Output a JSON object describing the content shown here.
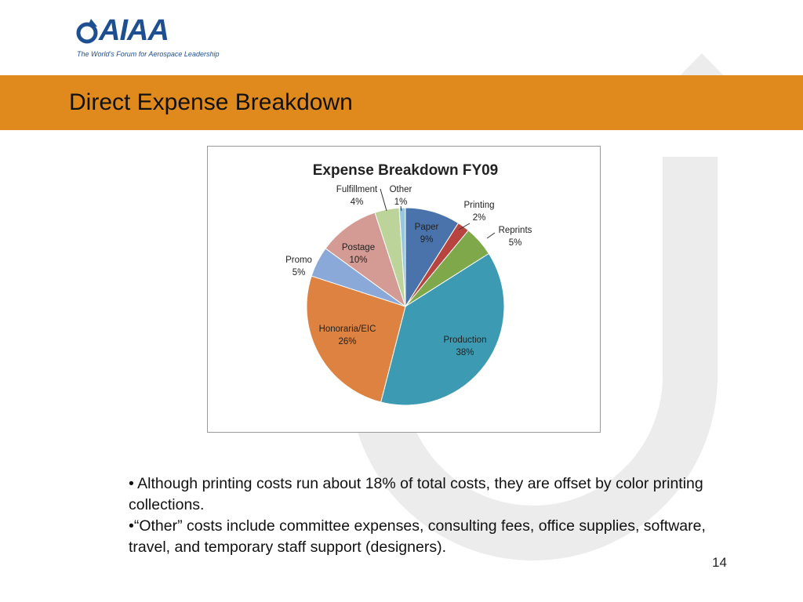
{
  "logo": {
    "wordmark": "AIAA",
    "tagline": "The World's Forum for Aerospace Leadership"
  },
  "slide": {
    "title": "Direct Expense Breakdown",
    "page_number": "14",
    "bullets": [
      "• Although printing costs run about 18% of total costs, they are offset by color printing collections.",
      "•“Other” costs include committee expenses, consulting fees, office supplies, software, travel, and temporary staff support (designers)."
    ]
  },
  "colors": {
    "band": "#e08a1e",
    "text": "#111111",
    "logo": "#1d4f91"
  },
  "chart_data": {
    "type": "pie",
    "title": "Expense Breakdown FY09",
    "start": "12 o'clock, clockwise",
    "slices": [
      {
        "label": "Paper",
        "value": 9,
        "display": "9%",
        "color": "#4a73ab"
      },
      {
        "label": "Printing",
        "value": 2,
        "display": "2%",
        "color": "#b8443f"
      },
      {
        "label": "Reprints",
        "value": 5,
        "display": "5%",
        "color": "#7ea84a"
      },
      {
        "label": "Production",
        "value": 38,
        "display": "38%",
        "color": "#3d9ab3"
      },
      {
        "label": "Honoraria/EIC",
        "value": 26,
        "display": "26%",
        "color": "#dd8240"
      },
      {
        "label": "Promo",
        "value": 5,
        "display": "5%",
        "color": "#8aa8d8"
      },
      {
        "label": "Postage",
        "value": 10,
        "display": "10%",
        "color": "#d49a94"
      },
      {
        "label": "Fulfillment",
        "value": 4,
        "display": "4%",
        "color": "#bcd49a"
      },
      {
        "label": "Other",
        "value": 1,
        "display": "1%",
        "color": "#98c8e0"
      }
    ]
  }
}
